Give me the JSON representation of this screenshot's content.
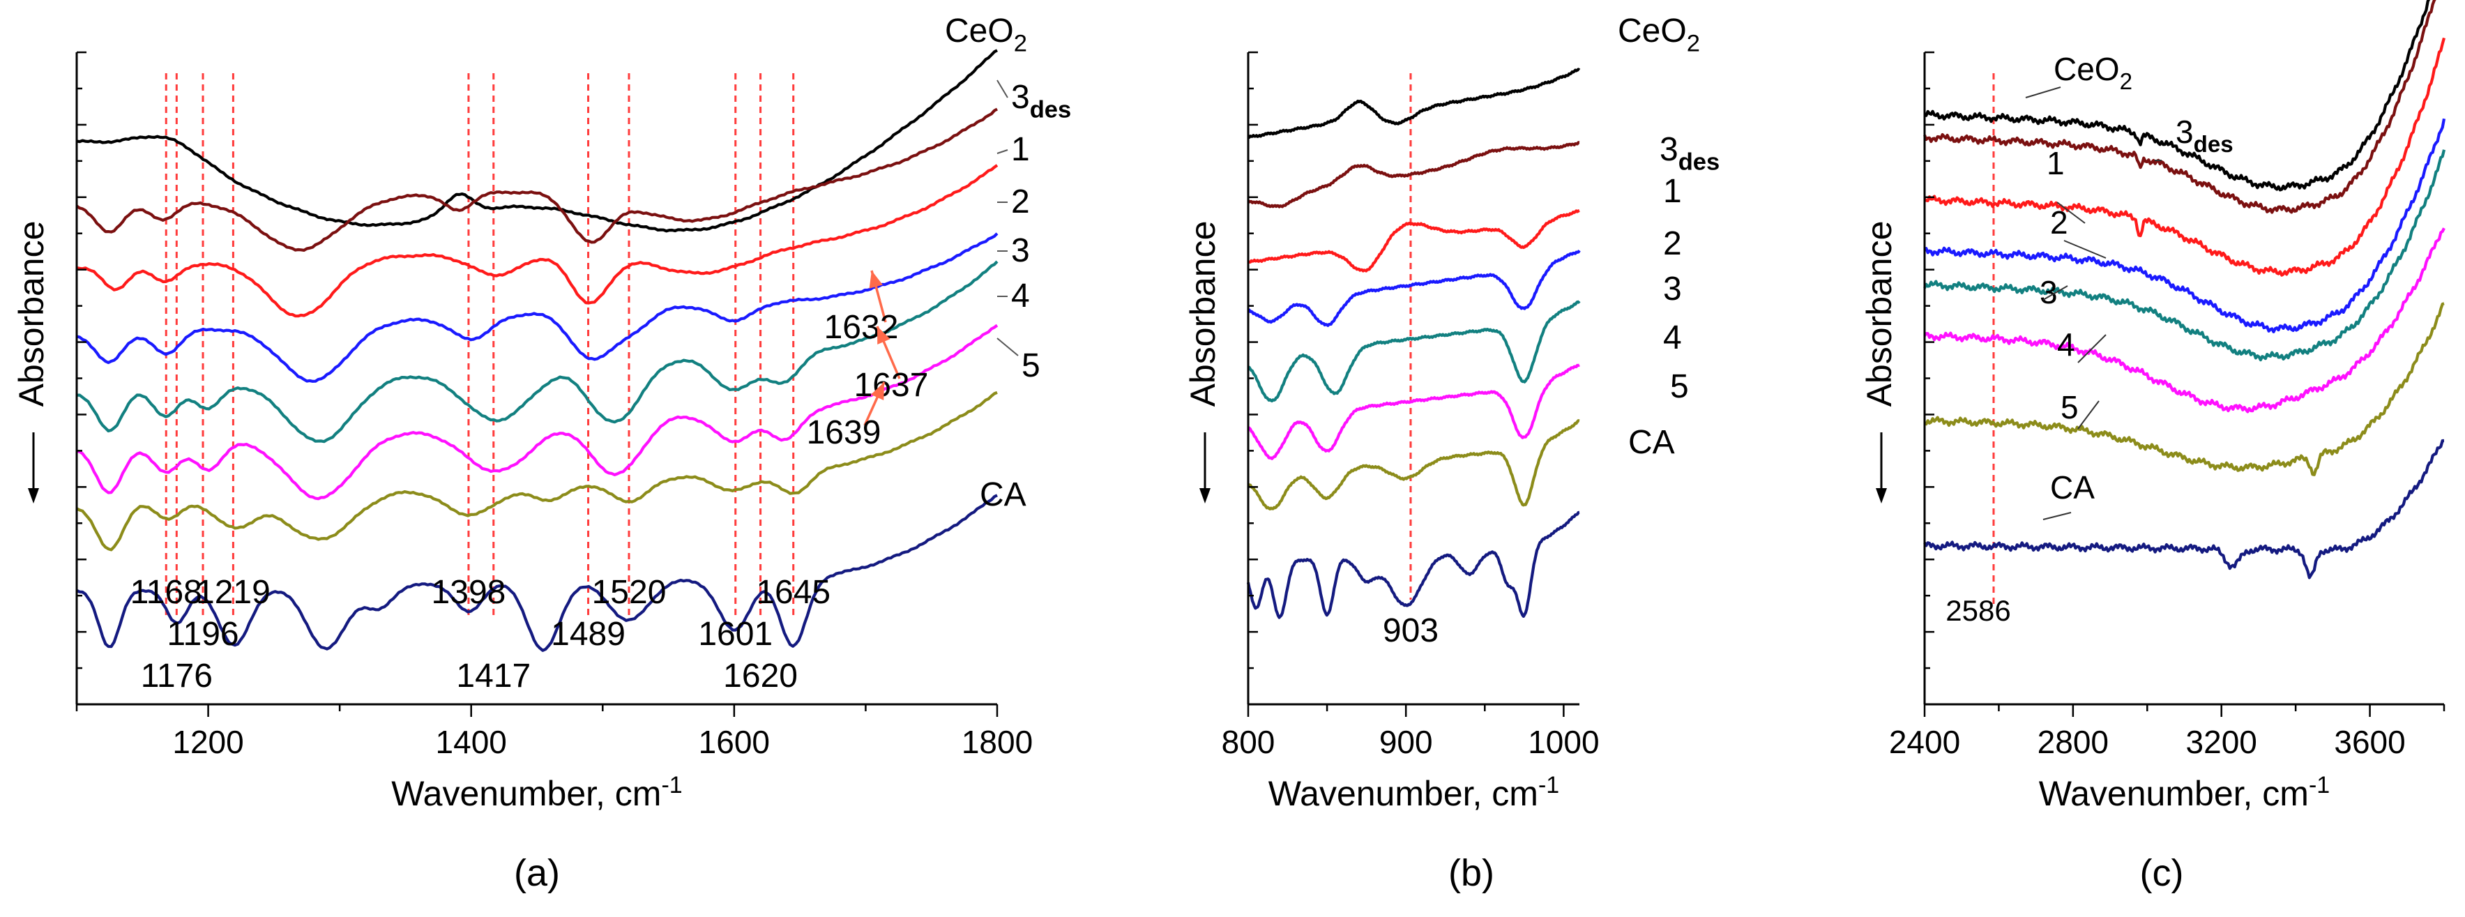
{
  "colors": {
    "CeO2": "#000000",
    "3des": "#7b1010",
    "1": "#ff1a1a",
    "2": "#1a1aff",
    "3": "#128080",
    "4": "#ff10ff",
    "5": "#8c8c1a",
    "CA": "#141a80",
    "ref_line": "#ff3b3b",
    "arrow": "#ff6a4a",
    "axis": "#000000"
  },
  "chart_data": [
    {
      "type": "line",
      "panel_label": "(a)",
      "xlabel": "Wavenumber, cm",
      "xlabel_sup": "-1",
      "ylabel": "Absorbance",
      "xlim": [
        1100,
        1800
      ],
      "xticks": [
        "1200",
        "1400",
        "1600",
        "1800"
      ],
      "ref_lines": [
        1168,
        1176,
        1196,
        1219,
        1398,
        1417,
        1489,
        1520,
        1601,
        1620,
        1645
      ],
      "peak_labels": [
        {
          "text": "1168",
          "x": 1168,
          "row": 0
        },
        {
          "text": "1176",
          "x": 1176,
          "row": 2
        },
        {
          "text": "1196",
          "x": 1196,
          "row": 1
        },
        {
          "text": "1219",
          "x": 1219,
          "row": 0
        },
        {
          "text": "1398",
          "x": 1398,
          "row": 0
        },
        {
          "text": "1417",
          "x": 1417,
          "row": 2
        },
        {
          "text": "1489",
          "x": 1489,
          "row": 1
        },
        {
          "text": "1520",
          "x": 1520,
          "row": 0
        },
        {
          "text": "1601",
          "x": 1601,
          "row": 1
        },
        {
          "text": "1620",
          "x": 1620,
          "row": 2
        },
        {
          "text": "1645",
          "x": 1645,
          "row": 0
        }
      ],
      "annotations": [
        {
          "text": "1632",
          "x": 1632,
          "series": "2"
        },
        {
          "text": "1637",
          "x": 1637,
          "series": "3"
        },
        {
          "text": "1639",
          "x": 1639,
          "series": "4"
        }
      ],
      "series_names": [
        "CeO2",
        "3des",
        "1",
        "2",
        "3",
        "4",
        "5",
        "CA"
      ],
      "series_offsets": [
        9.0,
        7.8,
        6.7,
        5.5,
        4.5,
        3.5,
        2.5,
        1.0
      ],
      "ylim": [
        -1.0,
        10.5
      ],
      "features": {
        "CeO2": [
          [
            1170,
            0.35,
            25
          ],
          [
            1320,
            -1.5,
            90
          ],
          [
            1390,
            0.35,
            10
          ],
          [
            1565,
            -1.6,
            90
          ]
        ],
        "3des": [
          [
            1125,
            -0.5,
            10
          ],
          [
            1165,
            -0.3,
            10
          ],
          [
            1270,
            -0.9,
            30
          ],
          [
            1390,
            -0.3,
            10
          ],
          [
            1490,
            -0.8,
            15
          ],
          [
            1570,
            -0.6,
            45
          ]
        ],
        "1": [
          [
            1130,
            -0.4,
            10
          ],
          [
            1168,
            -0.3,
            10
          ],
          [
            1270,
            -1.0,
            25
          ],
          [
            1420,
            -0.4,
            20
          ],
          [
            1490,
            -0.9,
            15
          ],
          [
            1575,
            -0.5,
            40
          ]
        ],
        "2": [
          [
            1125,
            -0.5,
            10
          ],
          [
            1168,
            -0.4,
            10
          ],
          [
            1280,
            -1.0,
            25
          ],
          [
            1400,
            -0.4,
            15
          ],
          [
            1490,
            -0.8,
            15
          ],
          [
            1520,
            -0.4,
            15
          ],
          [
            1600,
            -0.3,
            15
          ]
        ],
        "3": [
          [
            1125,
            -0.7,
            10
          ],
          [
            1168,
            -0.5,
            10
          ],
          [
            1200,
            -0.4,
            10
          ],
          [
            1285,
            -1.1,
            25
          ],
          [
            1420,
            -0.9,
            25
          ],
          [
            1500,
            -0.7,
            15
          ],
          [
            1520,
            -0.6,
            15
          ],
          [
            1600,
            -0.6,
            15
          ],
          [
            1637,
            -0.5,
            12
          ]
        ],
        "4": [
          [
            1125,
            -0.8,
            10
          ],
          [
            1168,
            -0.5,
            10
          ],
          [
            1200,
            -0.5,
            10
          ],
          [
            1285,
            -1.1,
            25
          ],
          [
            1420,
            -0.8,
            25
          ],
          [
            1500,
            -0.6,
            15
          ],
          [
            1520,
            -0.6,
            15
          ],
          [
            1600,
            -0.5,
            15
          ],
          [
            1639,
            -0.5,
            12
          ]
        ],
        "5": [
          [
            1125,
            -0.8,
            10
          ],
          [
            1170,
            -0.3,
            10
          ],
          [
            1220,
            -0.5,
            15
          ],
          [
            1285,
            -0.8,
            25
          ],
          [
            1400,
            -0.5,
            20
          ],
          [
            1460,
            -0.3,
            15
          ],
          [
            1520,
            -0.4,
            15
          ],
          [
            1600,
            -0.3,
            15
          ],
          [
            1645,
            -0.4,
            12
          ]
        ],
        "CA": [
          [
            1125,
            -1.0,
            8
          ],
          [
            1176,
            -0.6,
            8
          ],
          [
            1220,
            -1.0,
            12
          ],
          [
            1290,
            -1.1,
            15
          ],
          [
            1330,
            -0.4,
            10
          ],
          [
            1398,
            -0.5,
            10
          ],
          [
            1455,
            -1.2,
            12
          ],
          [
            1520,
            -0.7,
            15
          ],
          [
            1600,
            -0.9,
            12
          ],
          [
            1645,
            -1.2,
            10
          ]
        ]
      },
      "slopes": {
        "CeO2": 0.0,
        "3des": 0.5,
        "1": 0.6,
        "2": 0.8,
        "3": 0.9,
        "4": 0.9,
        "5": 0.8,
        "CA": 0.3
      },
      "tail_rise": {
        "CeO2": 1.6,
        "3des": 1.2,
        "1": 1.2,
        "2": 1.0,
        "3": 1.4,
        "4": 1.3,
        "5": 1.2,
        "CA": 1.4
      }
    },
    {
      "type": "line",
      "panel_label": "(b)",
      "xlabel": "Wavenumber, cm",
      "xlabel_sup": "-1",
      "ylabel": "Absorbance",
      "xlim": [
        800,
        1010
      ],
      "xticks": [
        "800",
        "900",
        "1000"
      ],
      "ref_lines": [
        903
      ],
      "peak_labels": [
        {
          "text": "903",
          "x": 903,
          "row": 0
        }
      ],
      "series_names": [
        "CeO2",
        "3des",
        "1",
        "2",
        "3",
        "4",
        "5",
        "CA"
      ],
      "series_offsets": [
        9.0,
        7.9,
        6.8,
        6.0,
        5.1,
        4.0,
        3.0,
        1.5
      ],
      "ylim": [
        -1.0,
        10.5
      ],
      "features": {
        "CeO2": [
          [
            870,
            0.3,
            8
          ],
          [
            895,
            -0.2,
            10
          ]
        ],
        "3des": [
          [
            820,
            -0.2,
            10
          ],
          [
            870,
            0.3,
            10
          ],
          [
            960,
            0.2,
            20
          ]
        ],
        "1": [
          [
            875,
            -0.5,
            10
          ],
          [
            900,
            0.3,
            15
          ],
          [
            975,
            -0.4,
            8
          ]
        ],
        "2": [
          [
            815,
            -0.3,
            8
          ],
          [
            850,
            -0.5,
            8
          ],
          [
            975,
            -0.7,
            8
          ]
        ],
        "3": [
          [
            815,
            -0.8,
            8
          ],
          [
            855,
            -0.8,
            8
          ],
          [
            975,
            -1.0,
            7
          ]
        ],
        "4": [
          [
            815,
            -0.7,
            8
          ],
          [
            850,
            -0.7,
            8
          ],
          [
            975,
            -0.9,
            7
          ]
        ],
        "5": [
          [
            815,
            -0.6,
            8
          ],
          [
            850,
            -0.5,
            8
          ],
          [
            900,
            -0.3,
            10
          ],
          [
            975,
            -1.0,
            6
          ]
        ],
        "CA": [
          [
            805,
            -0.8,
            4
          ],
          [
            820,
            -1.0,
            4
          ],
          [
            850,
            -1.0,
            4
          ],
          [
            875,
            -0.4,
            6
          ],
          [
            900,
            -0.9,
            10
          ],
          [
            940,
            -0.4,
            6
          ],
          [
            965,
            -0.6,
            4
          ],
          [
            975,
            -1.2,
            4
          ]
        ]
      },
      "slopes": {
        "CeO2": 1.0,
        "3des": 0.9,
        "1": 0.8,
        "2": 0.8,
        "3": 0.7,
        "4": 0.7,
        "5": 0.6,
        "CA": 0.3
      },
      "tail_rise": {
        "CeO2": 0.2,
        "3des": 0.1,
        "1": 0.1,
        "2": 0.2,
        "3": 0.3,
        "4": 0.3,
        "5": 0.4,
        "CA": 0.6
      }
    },
    {
      "type": "line",
      "panel_label": "(c)",
      "xlabel": "Wavenumber, cm",
      "xlabel_sup": "-1",
      "ylabel": "Absorbance",
      "xlim": [
        2400,
        3800
      ],
      "xticks": [
        "2400",
        "2800",
        "3200",
        "3600"
      ],
      "ref_lines": [
        2586
      ],
      "peak_labels": [
        {
          "text": "2586",
          "x": 2586,
          "row": 0
        }
      ],
      "series_names": [
        "CeO2",
        "3des",
        "1",
        "2",
        "3",
        "4",
        "5",
        "CA"
      ],
      "series_offsets": [
        9.4,
        9.0,
        7.9,
        7.0,
        6.4,
        5.5,
        4.0,
        1.8
      ],
      "ylim": [
        -1.0,
        10.5
      ],
      "features": {
        "CeO2": [
          [
            3350,
            -1.0,
            200
          ],
          [
            2980,
            -0.15,
            5
          ]
        ],
        "3des": [
          [
            3350,
            -1.0,
            200
          ],
          [
            2980,
            -0.2,
            5
          ]
        ],
        "1": [
          [
            3350,
            -1.0,
            200
          ],
          [
            2980,
            -0.3,
            5
          ]
        ],
        "2": [
          [
            3350,
            -1.1,
            200
          ]
        ],
        "3": [
          [
            3320,
            -1.0,
            200
          ]
        ],
        "4": [
          [
            3250,
            -1.1,
            220
          ]
        ],
        "5": [
          [
            3250,
            -0.7,
            220
          ],
          [
            3450,
            -0.3,
            10
          ]
        ],
        "CA": [
          [
            3230,
            -0.3,
            20
          ],
          [
            3440,
            -0.5,
            12
          ]
        ]
      },
      "slopes": {
        "CeO2": -0.4,
        "3des": -0.4,
        "1": -0.4,
        "2": -0.4,
        "3": -0.4,
        "4": -0.3,
        "5": -0.2,
        "CA": -0.1
      },
      "tail_rise": {
        "CeO2": 3.4,
        "3des": 3.5,
        "1": 3.3,
        "2": 2.8,
        "3": 2.8,
        "4": 2.3,
        "5": 2.3,
        "CA": 2.0
      }
    }
  ],
  "panel_c_labels": [
    "CeO2",
    "3des",
    "1",
    "2",
    "3",
    "4",
    "5",
    "CA"
  ]
}
